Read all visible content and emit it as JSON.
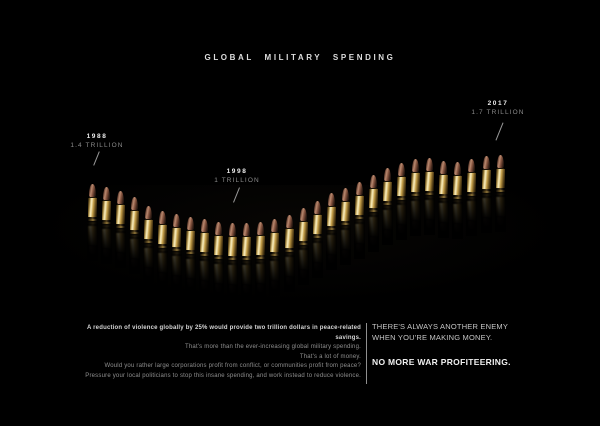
{
  "title": "GLOBAL MILITARY SPENDING",
  "chart_data": {
    "type": "line",
    "title": "GLOBAL MILITARY SPENDING",
    "marker": "bullet-cartridge",
    "unit": "trillion USD",
    "x": [
      1988,
      1989,
      1990,
      1991,
      1992,
      1993,
      1994,
      1995,
      1996,
      1997,
      1998,
      1999,
      2000,
      2001,
      2002,
      2003,
      2004,
      2005,
      2006,
      2007,
      2008,
      2009,
      2010,
      2011,
      2012,
      2013,
      2014,
      2015,
      2016,
      2017
    ],
    "values": [
      1.4,
      1.37,
      1.33,
      1.27,
      1.18,
      1.12,
      1.09,
      1.06,
      1.04,
      1.01,
      1.0,
      1.0,
      1.01,
      1.04,
      1.08,
      1.15,
      1.23,
      1.31,
      1.36,
      1.42,
      1.5,
      1.57,
      1.62,
      1.66,
      1.67,
      1.64,
      1.63,
      1.66,
      1.69,
      1.7
    ],
    "ylim": [
      0.9,
      1.8
    ],
    "axes_visible": false,
    "legend": "none",
    "annotations": [
      {
        "year": "1988",
        "value_label": "1.4 TRILLION"
      },
      {
        "year": "1998",
        "value_label": "1 TRILLION"
      },
      {
        "year": "2017",
        "value_label": "1.7 TRILLION"
      }
    ]
  },
  "footer": {
    "left_lines": [
      "A reduction of violence globally by 25% would provide two trillion dollars in peace-related savings.",
      "That's more than the ever-increasing global military spending.",
      "That's a lot of money.",
      "Would you rather large corporations profit from conflict, or communities profit from peace?",
      "Pressure your local politicians to stop this insane spending, and work instead to reduce violence."
    ],
    "right": {
      "line1": "THERE'S ALWAYS ANOTHER ENEMY",
      "line2": "WHEN YOU'RE MAKING MONEY.",
      "tagline": "NO MORE WAR PROFITEERING."
    }
  },
  "colors": {
    "background": "#000000",
    "brass": "#c7a14b",
    "copper": "#8a5843",
    "text_bright": "#ededed",
    "text_dim": "#8a8a8a"
  }
}
